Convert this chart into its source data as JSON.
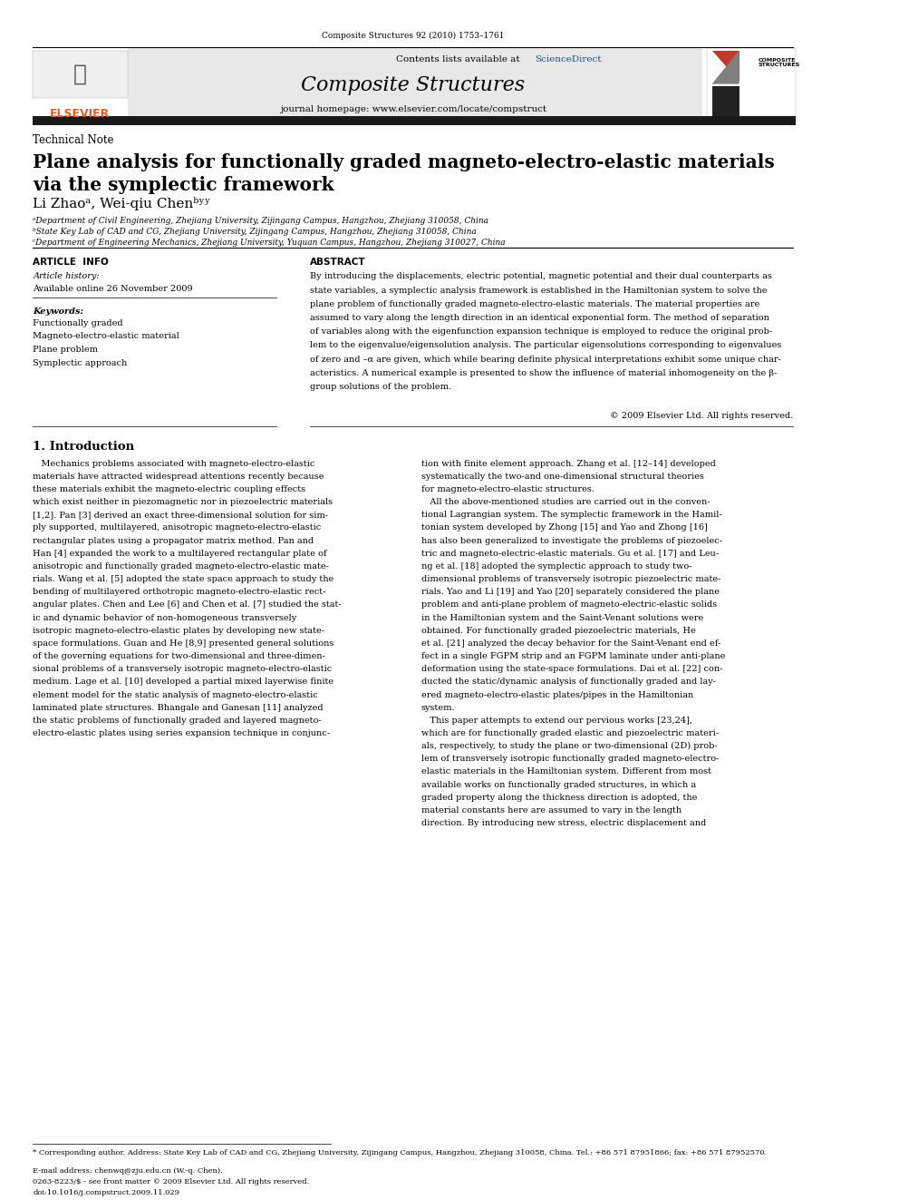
{
  "page_width": 9.92,
  "page_height": 13.23,
  "bg_color": "#ffffff",
  "top_journal_ref": "Composite Structures 92 (2010) 1753–1761",
  "journal_name": "Composite Structures",
  "journal_homepage": "journal homepage: www.elsevier.com/locate/compstruct",
  "contents_text": "Contents lists available at ScienceDirect",
  "sciencedirect_color": "#1a5276",
  "header_bg": "#e8e8e8",
  "dark_bar_color": "#1a1a1a",
  "elsevier_color": "#e05c2a",
  "article_type": "Technical Note",
  "paper_title_line1": "Plane analysis for functionally graded magneto-electro-elastic materials",
  "paper_title_line2": "via the symplectic framework",
  "authors": "Li Zhaoᵃ, Wei-qiu Chenᵇʸʸ",
  "affil_a": "ᵃDepartment of Civil Engineering, Zhejiang University, Zijingang Campus, Hangzhou, Zhejiang 310058, China",
  "affil_b": "ᵇState Key Lab of CAD and CG, Zhejiang University, Zijingang Campus, Hangzhou, Zhejiang 310058, China",
  "affil_c": "ᶜDepartment of Engineering Mechanics, Zhejiang University, Yuquan Campus, Hangzhou, Zhejiang 310027, China",
  "article_info_header": "ARTICLE  INFO",
  "abstract_header": "ABSTRACT",
  "article_history_label": "Article history:",
  "article_history_date": "Available online 26 November 2009",
  "keywords_label": "Keywords:",
  "keywords": [
    "Functionally graded",
    "Magneto-electro-elastic material",
    "Plane problem",
    "Symplectic approach"
  ],
  "copyright": "© 2009 Elsevier Ltd. All rights reserved.",
  "section1_title": "1. Introduction",
  "footnote_star": "* Corresponding author. Address: State Key Lab of CAD and CG, Zhejiang University, Zijingang Campus, Hangzhou, Zhejiang 310058, China. Tel.: +86 571 87951866; fax: +86 571 87952570.",
  "footnote_email": "E-mail address: chenwq@zju.edu.cn (W.-q. Chen).",
  "footer_issn": "0263-8223/$ - see front matter © 2009 Elsevier Ltd. All rights reserved.",
  "footer_doi": "doi:10.1016/j.compstruct.2009.11.029"
}
